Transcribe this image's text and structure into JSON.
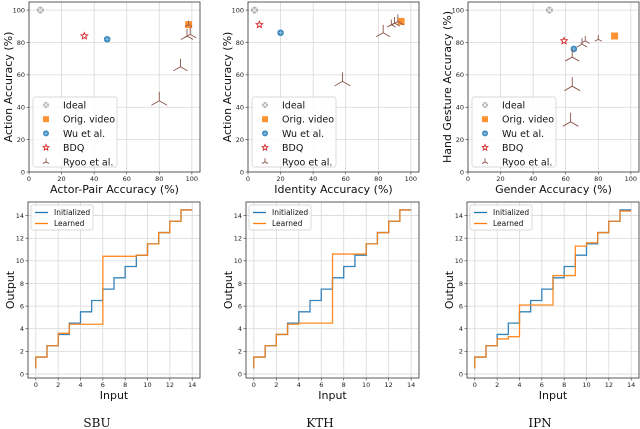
{
  "chart_data": [
    {
      "type": "scatter",
      "dataset": "SBU",
      "xlabel": "Actor-Pair Accuracy (%)",
      "ylabel": "Action Accuracy (%)",
      "xlim": [
        0,
        105
      ],
      "ylim": [
        0,
        105
      ],
      "xticks": [
        0,
        20,
        40,
        60,
        80,
        100
      ],
      "yticks": [
        0,
        20,
        40,
        60,
        80,
        100
      ],
      "grid": true,
      "legend_placement": "lower-left",
      "series": [
        {
          "name": "Ideal",
          "marker": "x-circle",
          "color": "#a0a0a0",
          "points": [
            [
              7,
              100
            ]
          ]
        },
        {
          "name": "Orig. video",
          "marker": "square",
          "color": "#ff7f0e",
          "points": [
            [
              98,
              91
            ]
          ]
        },
        {
          "name": "Wu et al.",
          "marker": "circle",
          "color": "#1f77b4",
          "points": [
            [
              48,
              82
            ]
          ]
        },
        {
          "name": "BDQ",
          "marker": "star",
          "color": "#d62728",
          "points": [
            [
              34,
              84
            ]
          ]
        },
        {
          "name": "Ryoo et al.",
          "marker": "tri",
          "color": "#8c564b",
          "points": [
            [
              98,
              91
            ],
            [
              97,
              84
            ],
            [
              99,
              85
            ],
            [
              93,
              65
            ],
            [
              80,
              44
            ]
          ]
        }
      ]
    },
    {
      "type": "scatter",
      "dataset": "KTH",
      "xlabel": "Identity Accuracy (%)",
      "ylabel": "Action  Accuracy (%)",
      "xlim": [
        0,
        105
      ],
      "ylim": [
        0,
        105
      ],
      "xticks": [
        0,
        20,
        40,
        60,
        80,
        100
      ],
      "yticks": [
        0,
        20,
        40,
        60,
        80,
        100
      ],
      "grid": true,
      "legend_placement": "lower-left",
      "series": [
        {
          "name": "Ideal",
          "marker": "x-circle",
          "color": "#a0a0a0",
          "points": [
            [
              4,
              100
            ]
          ]
        },
        {
          "name": "Orig. video",
          "marker": "square",
          "color": "#ff7f0e",
          "points": [
            [
              94,
              93
            ]
          ]
        },
        {
          "name": "Wu et al.",
          "marker": "circle",
          "color": "#1f77b4",
          "points": [
            [
              20,
              86
            ]
          ]
        },
        {
          "name": "BDQ",
          "marker": "star",
          "color": "#d62728",
          "points": [
            [
              7,
              91
            ]
          ]
        },
        {
          "name": "Ryoo et al.",
          "marker": "tri",
          "color": "#8c564b",
          "points": [
            [
              92,
              93
            ],
            [
              90,
              92
            ],
            [
              88,
              91
            ],
            [
              83,
              86
            ],
            [
              58,
              56
            ]
          ]
        }
      ]
    },
    {
      "type": "scatter",
      "dataset": "IPN",
      "xlabel": "Gender Accuracy (%)",
      "ylabel": "Hand Gesture Accuracy (%)",
      "xlim": [
        0,
        105
      ],
      "ylim": [
        0,
        105
      ],
      "xticks": [
        0,
        20,
        40,
        60,
        80,
        100
      ],
      "yticks": [
        0,
        20,
        40,
        60,
        80,
        100
      ],
      "grid": true,
      "legend_placement": "lower-left",
      "series": [
        {
          "name": "Ideal",
          "marker": "x-circle",
          "color": "#a0a0a0",
          "points": [
            [
              50,
              100
            ]
          ]
        },
        {
          "name": "Orig. video",
          "marker": "square",
          "color": "#ff7f0e",
          "points": [
            [
              90,
              84
            ]
          ]
        },
        {
          "name": "Wu et al.",
          "marker": "circle",
          "color": "#1f77b4",
          "points": [
            [
              65,
              76
            ]
          ]
        },
        {
          "name": "BDQ",
          "marker": "star",
          "color": "#d62728",
          "points": [
            [
              59,
              81
            ]
          ]
        },
        {
          "name": "Ryoo et al.",
          "marker": "tri",
          "color": "#8c564b",
          "points": [
            [
              80,
              82
            ],
            [
              72,
              81
            ],
            [
              70,
              79
            ],
            [
              64,
              71
            ],
            [
              64,
              53
            ],
            [
              63,
              31
            ]
          ]
        }
      ]
    },
    {
      "type": "line",
      "dataset": "SBU",
      "drawstyle": "steps",
      "xlabel": "Input",
      "ylabel": "Output",
      "xlim": [
        -0.7,
        14.7
      ],
      "ylim": [
        -0.35,
        15.2
      ],
      "xticks": [
        0,
        2,
        4,
        6,
        8,
        10,
        12,
        14
      ],
      "yticks": [
        0,
        2,
        4,
        6,
        8,
        10,
        12,
        14
      ],
      "grid": true,
      "legend_placement": "upper-left",
      "series": [
        {
          "name": "Initialized",
          "color": "#1f77b4",
          "start": 0.5,
          "levels": [
            1.5,
            2.5,
            3.5,
            4.5,
            5.5,
            6.5,
            7.5,
            8.5,
            9.5,
            10.5,
            11.5,
            12.5,
            13.5,
            14.5
          ]
        },
        {
          "name": "Learned",
          "color": "#ff7f0e",
          "start": 0.5,
          "levels": [
            1.5,
            2.5,
            3.6,
            4.4,
            4.4,
            4.4,
            10.4,
            10.4,
            10.4,
            10.5,
            11.5,
            12.5,
            13.5,
            14.5
          ]
        }
      ]
    },
    {
      "type": "line",
      "dataset": "KTH",
      "drawstyle": "steps",
      "xlabel": "Input",
      "ylabel": "Output",
      "xlim": [
        -0.7,
        14.7
      ],
      "ylim": [
        -0.35,
        15.2
      ],
      "xticks": [
        0,
        2,
        4,
        6,
        8,
        10,
        12,
        14
      ],
      "yticks": [
        0,
        2,
        4,
        6,
        8,
        10,
        12,
        14
      ],
      "grid": true,
      "legend_placement": "upper-left",
      "series": [
        {
          "name": "Initialized",
          "color": "#1f77b4",
          "start": 0.5,
          "levels": [
            1.5,
            2.5,
            3.5,
            4.5,
            5.5,
            6.5,
            7.5,
            8.5,
            9.5,
            10.5,
            11.5,
            12.5,
            13.5,
            14.5
          ]
        },
        {
          "name": "Learned",
          "color": "#ff7f0e",
          "start": 0.5,
          "levels": [
            1.5,
            2.5,
            3.5,
            4.4,
            4.5,
            4.5,
            4.5,
            10.6,
            10.6,
            10.6,
            11.5,
            12.5,
            13.5,
            14.5
          ]
        }
      ]
    },
    {
      "type": "line",
      "dataset": "IPN",
      "drawstyle": "steps",
      "xlabel": "Input",
      "ylabel": "Output",
      "xlim": [
        -0.7,
        14.7
      ],
      "ylim": [
        -0.35,
        15.2
      ],
      "xticks": [
        0,
        2,
        4,
        6,
        8,
        10,
        12,
        14
      ],
      "yticks": [
        0,
        2,
        4,
        6,
        8,
        10,
        12,
        14
      ],
      "grid": true,
      "legend_placement": "upper-left",
      "series": [
        {
          "name": "Initialized",
          "color": "#1f77b4",
          "start": 0.5,
          "levels": [
            1.5,
            2.5,
            3.5,
            4.5,
            5.5,
            6.5,
            7.5,
            8.5,
            9.5,
            10.5,
            11.5,
            12.5,
            13.5,
            14.5
          ]
        },
        {
          "name": "Learned",
          "color": "#ff7f0e",
          "start": 0.5,
          "levels": [
            1.5,
            2.5,
            3.1,
            3.3,
            6.1,
            6.1,
            6.1,
            8.7,
            8.7,
            11.3,
            11.6,
            12.5,
            13.5,
            14.4
          ]
        }
      ]
    }
  ],
  "captions": [
    "SBU",
    "KTH",
    "IPN"
  ]
}
